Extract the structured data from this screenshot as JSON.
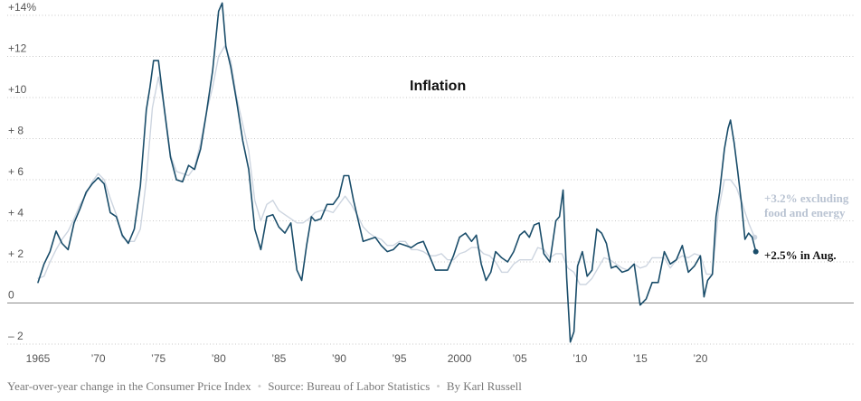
{
  "chart_data": {
    "type": "line",
    "title": "Inflation",
    "xlabel": "",
    "ylabel": "",
    "xlim": [
      1965.0,
      2024.7
    ],
    "ylim": [
      -2.0,
      14.0
    ],
    "grid": true,
    "x_ticks": [
      1965,
      1970,
      1975,
      1980,
      1985,
      1990,
      1995,
      2000,
      2005,
      2010,
      2015,
      2020
    ],
    "x_tick_labels": [
      "1965",
      "’70",
      "’75",
      "’80",
      "’85",
      "’90",
      "’95",
      "2000",
      "’05",
      "’10",
      "’15",
      "’20"
    ],
    "y_ticks": [
      -2,
      0,
      2,
      4,
      6,
      8,
      10,
      12,
      14
    ],
    "y_tick_labels": [
      "– 2",
      "0",
      "+ 2",
      "+ 4",
      "+ 6",
      "+ 8",
      "+10",
      "+12",
      "+14%"
    ],
    "series": [
      {
        "id": "core",
        "color": "#cdd5e0",
        "x": [
          1965.0,
          1965.5,
          1966.0,
          1966.5,
          1967.0,
          1967.5,
          1968.0,
          1968.5,
          1969.0,
          1969.5,
          1970.0,
          1970.5,
          1971.0,
          1971.5,
          1972.0,
          1972.5,
          1973.0,
          1973.5,
          1974.0,
          1974.5,
          1975.0,
          1975.5,
          1976.0,
          1976.5,
          1977.0,
          1977.5,
          1978.0,
          1978.5,
          1979.0,
          1979.5,
          1980.0,
          1980.5,
          1981.0,
          1981.5,
          1982.0,
          1982.5,
          1983.0,
          1983.5,
          1984.0,
          1984.5,
          1985.0,
          1985.5,
          1986.0,
          1986.5,
          1987.0,
          1987.5,
          1988.0,
          1988.5,
          1989.0,
          1989.5,
          1990.0,
          1990.5,
          1991.0,
          1991.5,
          1992.0,
          1992.5,
          1993.0,
          1993.5,
          1994.0,
          1994.5,
          1995.0,
          1995.5,
          1996.0,
          1996.5,
          1997.0,
          1997.5,
          1998.0,
          1998.5,
          1999.0,
          1999.5,
          2000.0,
          2000.5,
          2001.0,
          2001.5,
          2002.0,
          2002.5,
          2003.0,
          2003.5,
          2004.0,
          2004.5,
          2005.0,
          2005.5,
          2006.0,
          2006.5,
          2007.0,
          2007.5,
          2008.0,
          2008.5,
          2009.0,
          2009.5,
          2010.0,
          2010.5,
          2011.0,
          2011.5,
          2012.0,
          2012.5,
          2013.0,
          2013.5,
          2014.0,
          2014.5,
          2015.0,
          2015.5,
          2016.0,
          2016.5,
          2017.0,
          2017.5,
          2018.0,
          2018.5,
          2019.0,
          2019.5,
          2020.0,
          2020.5,
          2021.0,
          2021.5,
          2022.0,
          2022.5,
          2023.0,
          2023.5,
          2024.0,
          2024.5
        ],
        "y": [
          1.2,
          1.3,
          2.0,
          2.6,
          3.1,
          3.5,
          4.1,
          4.8,
          5.3,
          5.9,
          6.3,
          6.0,
          5.1,
          4.3,
          3.2,
          3.0,
          3.0,
          3.6,
          6.0,
          9.5,
          11.0,
          9.5,
          7.2,
          6.4,
          6.3,
          6.2,
          6.6,
          7.8,
          9.3,
          10.5,
          12.0,
          12.5,
          11.8,
          10.0,
          8.7,
          7.4,
          5.0,
          4.0,
          4.8,
          5.0,
          4.5,
          4.3,
          4.1,
          3.9,
          3.9,
          4.1,
          4.4,
          4.5,
          4.5,
          4.4,
          4.8,
          5.2,
          4.8,
          4.3,
          3.7,
          3.4,
          3.2,
          3.1,
          2.8,
          2.8,
          3.0,
          3.0,
          2.6,
          2.6,
          2.5,
          2.3,
          2.3,
          2.4,
          2.1,
          2.1,
          2.4,
          2.5,
          2.7,
          2.7,
          2.4,
          2.3,
          2.0,
          1.5,
          1.5,
          1.9,
          2.1,
          2.1,
          2.1,
          2.7,
          2.6,
          2.2,
          2.4,
          2.4,
          1.7,
          1.5,
          0.9,
          0.9,
          1.2,
          1.7,
          2.2,
          2.1,
          1.9,
          1.7,
          1.6,
          1.9,
          1.7,
          1.8,
          2.2,
          2.2,
          2.2,
          1.7,
          2.1,
          2.3,
          2.2,
          2.4,
          2.3,
          1.4,
          1.4,
          4.5,
          6.0,
          6.0,
          5.6,
          4.8,
          3.9,
          3.2
        ]
      },
      {
        "id": "headline",
        "color": "#1a4d6a",
        "x": [
          1965.0,
          1965.5,
          1966.0,
          1966.5,
          1967.0,
          1967.5,
          1968.0,
          1968.5,
          1969.0,
          1969.5,
          1970.0,
          1970.5,
          1971.0,
          1971.5,
          1972.0,
          1972.5,
          1973.0,
          1973.5,
          1974.0,
          1974.3,
          1974.6,
          1975.0,
          1975.5,
          1976.0,
          1976.5,
          1977.0,
          1977.5,
          1978.0,
          1978.5,
          1979.0,
          1979.5,
          1980.0,
          1980.3,
          1980.6,
          1981.0,
          1981.5,
          1982.0,
          1982.5,
          1983.0,
          1983.5,
          1984.0,
          1984.5,
          1985.0,
          1985.5,
          1986.0,
          1986.5,
          1986.9,
          1987.3,
          1987.7,
          1988.0,
          1988.5,
          1989.0,
          1989.5,
          1990.0,
          1990.4,
          1990.8,
          1991.2,
          1991.6,
          1992.0,
          1992.5,
          1993.0,
          1993.5,
          1994.0,
          1994.5,
          1995.0,
          1995.5,
          1996.0,
          1996.5,
          1997.0,
          1997.5,
          1998.0,
          1998.5,
          1999.0,
          1999.5,
          2000.0,
          2000.5,
          2001.0,
          2001.4,
          2001.8,
          2002.2,
          2002.6,
          2003.0,
          2003.5,
          2004.0,
          2004.5,
          2005.0,
          2005.4,
          2005.8,
          2006.2,
          2006.6,
          2007.0,
          2007.5,
          2008.0,
          2008.3,
          2008.6,
          2008.9,
          2009.2,
          2009.5,
          2009.8,
          2010.2,
          2010.6,
          2011.0,
          2011.4,
          2011.8,
          2012.2,
          2012.6,
          2013.0,
          2013.5,
          2014.0,
          2014.5,
          2015.0,
          2015.5,
          2016.0,
          2016.5,
          2017.0,
          2017.5,
          2018.0,
          2018.5,
          2019.0,
          2019.5,
          2020.0,
          2020.3,
          2020.6,
          2021.0,
          2021.3,
          2021.6,
          2022.0,
          2022.3,
          2022.5,
          2022.8,
          2023.1,
          2023.4,
          2023.7,
          2024.0,
          2024.3,
          2024.6
        ],
        "y": [
          1.0,
          1.9,
          2.5,
          3.5,
          2.9,
          2.6,
          3.9,
          4.6,
          5.4,
          5.8,
          6.1,
          5.8,
          4.4,
          4.2,
          3.3,
          2.9,
          3.6,
          5.7,
          9.4,
          10.5,
          11.8,
          11.8,
          9.4,
          7.1,
          6.0,
          5.9,
          6.7,
          6.5,
          7.5,
          9.3,
          11.3,
          14.2,
          14.6,
          12.5,
          11.5,
          9.8,
          7.9,
          6.5,
          3.6,
          2.6,
          4.2,
          4.3,
          3.7,
          3.4,
          3.9,
          1.6,
          1.1,
          2.8,
          4.2,
          4.0,
          4.1,
          4.8,
          4.8,
          5.2,
          6.2,
          6.2,
          5.0,
          4.0,
          3.0,
          3.1,
          3.2,
          2.8,
          2.5,
          2.6,
          2.9,
          2.8,
          2.7,
          2.9,
          3.0,
          2.3,
          1.6,
          1.6,
          1.6,
          2.3,
          3.2,
          3.4,
          3.0,
          3.3,
          1.9,
          1.1,
          1.5,
          2.5,
          2.2,
          2.0,
          2.5,
          3.3,
          3.5,
          3.2,
          3.8,
          3.9,
          2.4,
          2.0,
          4.0,
          4.2,
          5.5,
          1.2,
          -1.9,
          -1.4,
          1.8,
          2.5,
          1.3,
          1.6,
          3.6,
          3.4,
          2.9,
          1.7,
          1.8,
          1.5,
          1.6,
          1.9,
          -0.1,
          0.2,
          1.0,
          1.0,
          2.5,
          1.9,
          2.1,
          2.8,
          1.5,
          1.8,
          2.3,
          0.3,
          1.1,
          1.4,
          4.2,
          5.4,
          7.5,
          8.5,
          8.9,
          7.8,
          6.4,
          4.9,
          3.1,
          3.4,
          3.2,
          2.5
        ]
      }
    ],
    "annotations": {
      "core_label_line1": "+3.2% excluding",
      "core_label_line2": "food and energy",
      "headline_label": "+2.5% in Aug."
    }
  },
  "footer": {
    "description": "Year-over-year change in the Consumer Price Index",
    "source": "Source: Bureau of Labor Statistics",
    "byline": "By Karl Russell"
  }
}
